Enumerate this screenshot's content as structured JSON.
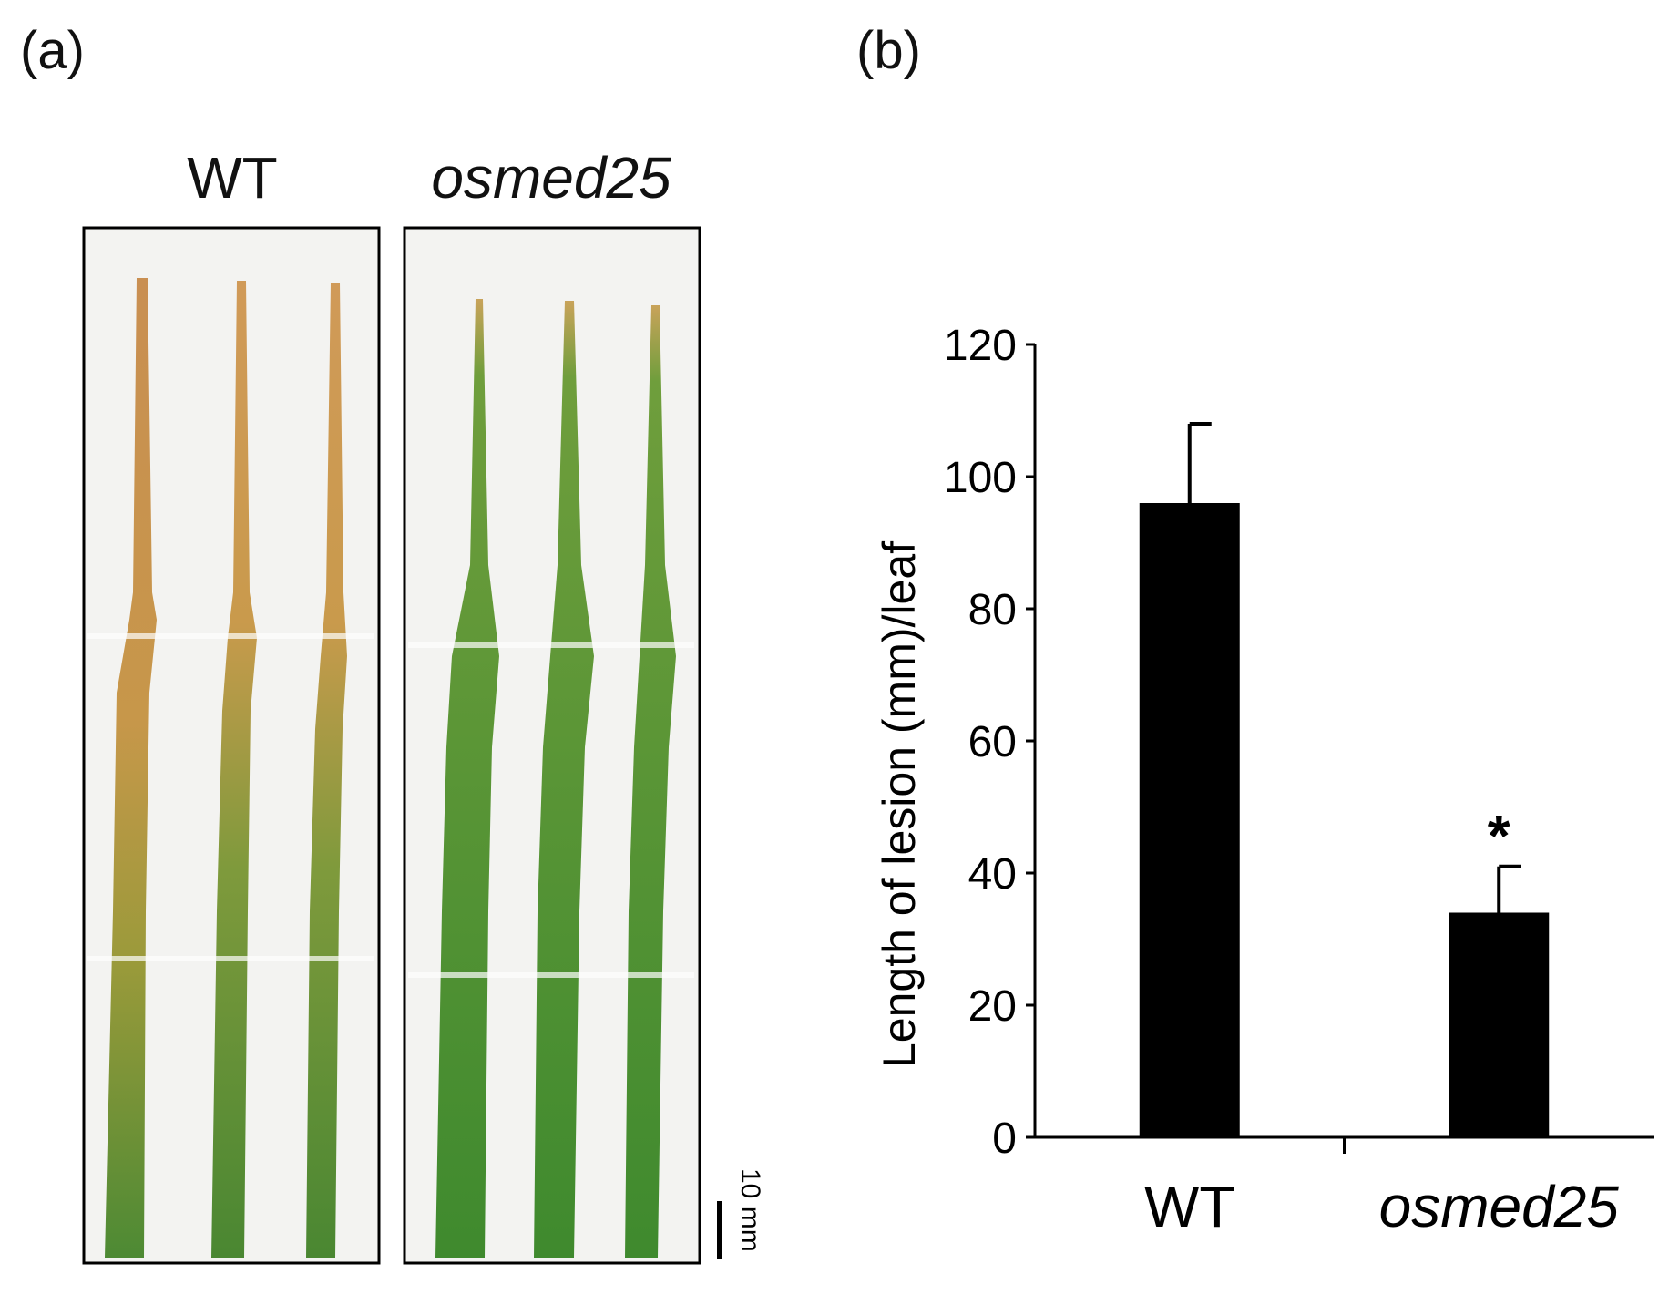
{
  "panels": {
    "a": {
      "label": "(a)",
      "titles": [
        "WT",
        "osmed25"
      ],
      "scale_bar": "10 mm"
    },
    "b": {
      "label": "(b)"
    }
  },
  "colors": {
    "bar": "#000000",
    "leaf_green": "#4f8f32",
    "leaf_lesion": "#c89a4a",
    "photo_bg": "#f4f4f2"
  },
  "chart_data": {
    "type": "bar",
    "categories": [
      "WT",
      "osmed25"
    ],
    "values": [
      96,
      34
    ],
    "errors": [
      12,
      7
    ],
    "significance": [
      "",
      "*"
    ],
    "title": "",
    "xlabel": "",
    "ylabel": "Length of lesion (mm)/leaf",
    "ylim": [
      0,
      120
    ],
    "yticks": [
      0,
      20,
      40,
      60,
      80,
      100,
      120
    ]
  }
}
